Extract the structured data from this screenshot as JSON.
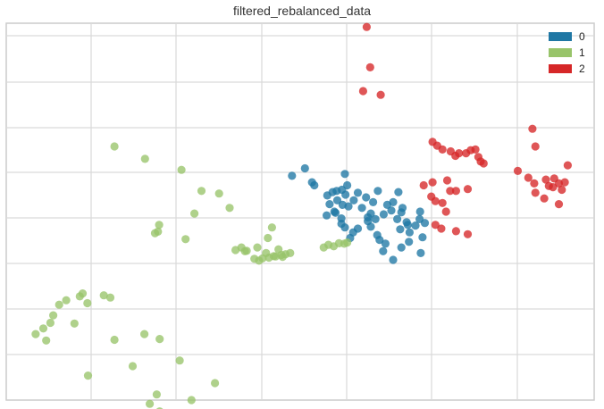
{
  "chart_data": {
    "type": "scatter",
    "title": "filtered_rebalanced_data",
    "xlabel": "",
    "ylabel": "",
    "xlim": [
      0,
      100
    ],
    "ylim": [
      0,
      100
    ],
    "grid": true,
    "ticks_shown": false,
    "legend": {
      "position": "top-right",
      "entries": [
        {
          "label": "0",
          "color": "#1f77a4"
        },
        {
          "label": "1",
          "color": "#98c46a"
        },
        {
          "label": "2",
          "color": "#d62728"
        }
      ]
    },
    "series": [
      {
        "name": "0",
        "color": "#1f77a4",
        "points": [
          [
            48.6,
            59.5
          ],
          [
            50.8,
            61.5
          ],
          [
            52.0,
            57.8
          ],
          [
            52.4,
            57.0
          ],
          [
            54.6,
            54.3
          ],
          [
            55.5,
            55.2
          ],
          [
            56.2,
            55.5
          ],
          [
            57.1,
            55.8
          ],
          [
            57.2,
            51.8
          ],
          [
            58.2,
            51.4
          ],
          [
            55.0,
            52.0
          ],
          [
            54.5,
            49.0
          ],
          [
            56.0,
            49.7
          ],
          [
            57.0,
            48.2
          ],
          [
            57.6,
            60.0
          ],
          [
            58.0,
            57.0
          ],
          [
            59.1,
            53.0
          ],
          [
            59.8,
            55.0
          ],
          [
            60.5,
            51.0
          ],
          [
            61.5,
            47.5
          ],
          [
            61.5,
            48.5
          ],
          [
            62.0,
            49.5
          ],
          [
            62.4,
            52.5
          ],
          [
            62.8,
            48.0
          ],
          [
            63.2,
            55.5
          ],
          [
            64.2,
            49.3
          ],
          [
            64.8,
            51.8
          ],
          [
            65.5,
            50.3
          ],
          [
            65.8,
            52.5
          ],
          [
            66.5,
            48.0
          ],
          [
            67.0,
            45.3
          ],
          [
            67.2,
            49.8
          ],
          [
            68.1,
            47.2
          ],
          [
            68.6,
            44.5
          ],
          [
            69.6,
            46.3
          ],
          [
            70.3,
            48.0
          ],
          [
            70.4,
            50.0
          ],
          [
            71.2,
            47.0
          ],
          [
            70.8,
            43.2
          ],
          [
            70.5,
            39.0
          ],
          [
            68.5,
            42.0
          ],
          [
            67.2,
            40.5
          ],
          [
            64.5,
            41.5
          ],
          [
            63.5,
            42.5
          ],
          [
            64.1,
            39.5
          ],
          [
            65.8,
            37.2
          ],
          [
            63.1,
            43.8
          ],
          [
            62.0,
            46.0
          ],
          [
            59.8,
            45.5
          ],
          [
            57.6,
            45.8
          ],
          [
            57.0,
            46.8
          ],
          [
            58.5,
            43.0
          ],
          [
            59.0,
            44.5
          ],
          [
            55.8,
            50.0
          ],
          [
            56.3,
            53.0
          ],
          [
            57.7,
            54.5
          ],
          [
            61.2,
            53.8
          ],
          [
            66.7,
            55.2
          ],
          [
            67.4,
            51.0
          ],
          [
            68.3,
            46.5
          ]
        ]
      },
      {
        "name": "1",
        "color": "#98c46a",
        "points": [
          [
            18.4,
            67.3
          ],
          [
            23.6,
            64.0
          ],
          [
            29.8,
            61.1
          ],
          [
            33.2,
            55.5
          ],
          [
            36.2,
            54.8
          ],
          [
            38.0,
            51.0
          ],
          [
            32.0,
            49.5
          ],
          [
            26.0,
            46.5
          ],
          [
            25.8,
            44.7
          ],
          [
            25.3,
            44.3
          ],
          [
            30.5,
            42.7
          ],
          [
            39.0,
            39.8
          ],
          [
            40.0,
            40.5
          ],
          [
            40.6,
            39.5
          ],
          [
            40.9,
            39.6
          ],
          [
            42.7,
            40.5
          ],
          [
            44.5,
            43.0
          ],
          [
            45.2,
            45.8
          ],
          [
            44.2,
            39.0
          ],
          [
            46.3,
            40.0
          ],
          [
            46.8,
            38.5
          ],
          [
            47.5,
            38.7
          ],
          [
            48.3,
            39.0
          ],
          [
            44.7,
            37.8
          ],
          [
            45.5,
            38.2
          ],
          [
            47.0,
            38.0
          ],
          [
            54.0,
            40.5
          ],
          [
            55.7,
            40.8
          ],
          [
            57.5,
            41.5
          ],
          [
            58.0,
            41.8
          ],
          [
            56.6,
            41.6
          ],
          [
            54.8,
            41.2
          ],
          [
            42.2,
            37.5
          ],
          [
            43.0,
            37.0
          ],
          [
            43.6,
            37.6
          ],
          [
            45.8,
            38.1
          ],
          [
            12.5,
            27.5
          ],
          [
            13.0,
            28.3
          ],
          [
            10.2,
            26.5
          ],
          [
            9.0,
            25.3
          ],
          [
            16.6,
            27.8
          ],
          [
            17.7,
            27.2
          ],
          [
            13.8,
            25.7
          ],
          [
            8.0,
            22.5
          ],
          [
            7.5,
            20.5
          ],
          [
            6.3,
            19.0
          ],
          [
            5.0,
            17.5
          ],
          [
            6.8,
            15.8
          ],
          [
            11.6,
            20.3
          ],
          [
            18.4,
            16.0
          ],
          [
            21.5,
            9.0
          ],
          [
            29.5,
            10.5
          ],
          [
            35.5,
            4.5
          ],
          [
            25.6,
            1.5
          ],
          [
            24.4,
            -1.0
          ],
          [
            26.1,
            -3.0
          ],
          [
            24.8,
            -4.5
          ],
          [
            24.9,
            -5.0
          ],
          [
            31.5,
            0.0
          ],
          [
            26.1,
            16.2
          ],
          [
            23.5,
            17.5
          ],
          [
            13.9,
            6.5
          ]
        ]
      },
      {
        "name": "2",
        "color": "#d62728",
        "points": [
          [
            61.3,
            99.0
          ],
          [
            61.9,
            88.3
          ],
          [
            60.7,
            82.0
          ],
          [
            63.7,
            81.0
          ],
          [
            72.5,
            68.5
          ],
          [
            73.3,
            67.5
          ],
          [
            74.2,
            66.5
          ],
          [
            75.6,
            66.0
          ],
          [
            76.4,
            64.8
          ],
          [
            77.0,
            65.5
          ],
          [
            78.2,
            65.5
          ],
          [
            79.0,
            66.3
          ],
          [
            79.8,
            66.5
          ],
          [
            80.3,
            64.5
          ],
          [
            80.7,
            63.3
          ],
          [
            81.2,
            62.8
          ],
          [
            75.0,
            58.3
          ],
          [
            72.5,
            57.8
          ],
          [
            71.0,
            57.0
          ],
          [
            72.3,
            54.0
          ],
          [
            73.0,
            52.8
          ],
          [
            74.2,
            52.3
          ],
          [
            75.5,
            55.5
          ],
          [
            76.5,
            55.5
          ],
          [
            78.5,
            56.0
          ],
          [
            74.8,
            50.0
          ],
          [
            73.0,
            46.5
          ],
          [
            74.0,
            45.5
          ],
          [
            76.5,
            44.8
          ],
          [
            78.5,
            44.0
          ],
          [
            87.0,
            60.8
          ],
          [
            88.8,
            59.0
          ],
          [
            89.8,
            57.5
          ],
          [
            90.0,
            55.0
          ],
          [
            91.5,
            53.5
          ],
          [
            92.3,
            56.8
          ],
          [
            93.2,
            58.8
          ],
          [
            94.0,
            57.5
          ],
          [
            94.5,
            55.8
          ],
          [
            95.0,
            57.8
          ],
          [
            95.5,
            62.3
          ],
          [
            94.0,
            52.0
          ],
          [
            91.8,
            58.5
          ],
          [
            93.0,
            56.5
          ],
          [
            90.0,
            67.3
          ],
          [
            89.5,
            72.0
          ]
        ]
      }
    ]
  }
}
